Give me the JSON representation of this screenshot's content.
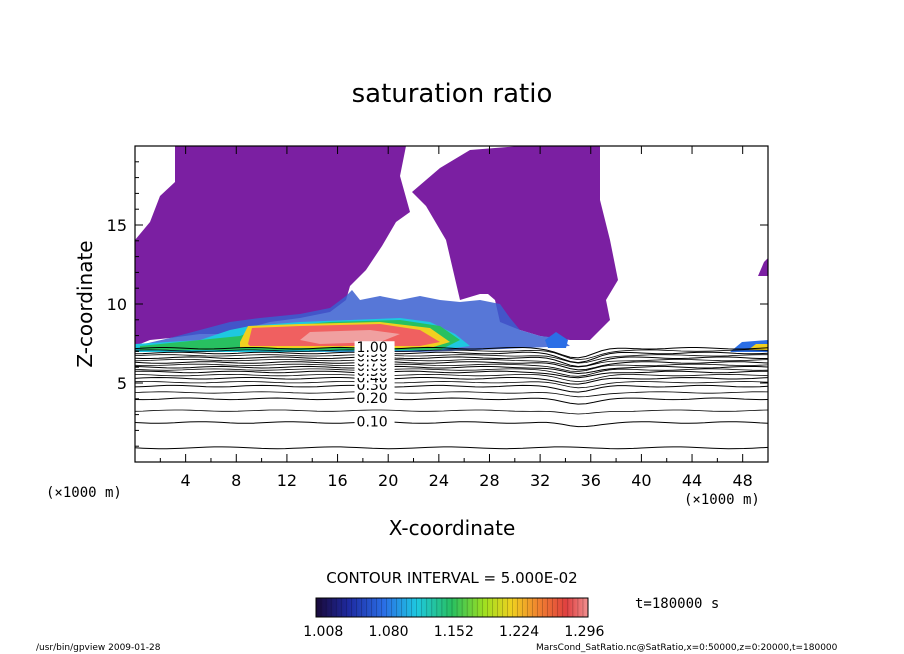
{
  "chart_data": {
    "type": "heatmap",
    "title": "saturation ratio",
    "xlabel": "X-coordinate",
    "ylabel": "Z-coordinate",
    "x_unit_left": "(×1000 m)",
    "x_unit_right": "(×1000 m)",
    "xlim": [
      0,
      50
    ],
    "ylim": [
      0,
      20
    ],
    "x_ticks": [
      4,
      8,
      12,
      16,
      20,
      24,
      28,
      32,
      36,
      40,
      44,
      48
    ],
    "y_ticks": [
      5,
      10,
      15
    ],
    "contour_interval_label": "CONTOUR INTERVAL = 5.000E-02",
    "time_label": "t=180000 s",
    "colorbar": {
      "ticks": [
        1.008,
        1.08,
        1.152,
        1.224,
        1.296
      ],
      "tick_labels": [
        "1.008",
        "1.080",
        "1.152",
        "1.224",
        "1.296"
      ],
      "range": [
        1.0,
        1.3
      ],
      "colors": [
        "#1a0a3a",
        "#1e2aa0",
        "#2a6ee6",
        "#1ec8e0",
        "#28c060",
        "#a0e020",
        "#f0d020",
        "#f08030",
        "#e04040",
        "#f09090"
      ]
    },
    "contour_lines": [
      {
        "label": "0.10",
        "z": 2.5
      },
      {
        "label": "0.20",
        "z": 4.0
      },
      {
        "label": "0.30",
        "z": 4.8
      },
      {
        "label": "0.40",
        "z": 5.3
      },
      {
        "label": "0.50",
        "z": 5.7
      },
      {
        "label": "0.60",
        "z": 6.0
      },
      {
        "label": "0.70",
        "z": 6.3
      },
      {
        "label": "0.80",
        "z": 6.6
      },
      {
        "label": "0.90",
        "z": 6.9
      },
      {
        "label": "1.00",
        "z": 7.2
      }
    ],
    "saturated_layer_peak": {
      "x_range": [
        9,
        24
      ],
      "z_range": [
        7.2,
        8.6
      ],
      "value_max": 1.296
    },
    "footer_left": "/usr/bin/gpview  2009-01-28",
    "footer_right": "MarsCond_SatRatio.nc@SatRatio,x=0:50000,z=0:20000,t=180000"
  }
}
